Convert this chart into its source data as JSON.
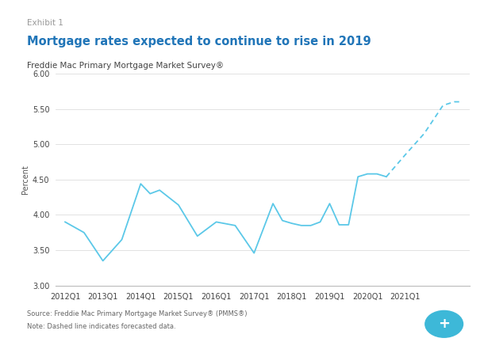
{
  "exhibit_label": "Exhibit 1",
  "title": "Mortgage rates expected to continue to rise in 2019",
  "subtitle": "Freddie Mac Primary Mortgage Market Survey®",
  "ylabel": "Percent",
  "source_text": "Source: Freddie Mac Primary Mortgage Market Survey® (PMMS®)",
  "note_text": "Note: Dashed line indicates forecasted data.",
  "line_color": "#5bc8e8",
  "background_color": "#ffffff",
  "ylim": [
    3.0,
    6.0
  ],
  "yticks": [
    3.0,
    3.5,
    4.0,
    4.5,
    5.0,
    5.5,
    6.0
  ],
  "title_color": "#2075b8",
  "exhibit_color": "#999999",
  "separator_color": "#a8c060",
  "solid_x": [
    0,
    0.5,
    1.0,
    1.5,
    2.0,
    2.25,
    2.5,
    3.0,
    3.5,
    4.0,
    4.5,
    5.0,
    5.5,
    5.75,
    6.0,
    6.25,
    6.5,
    6.75,
    7.0,
    7.25,
    7.5,
    7.75,
    8.0,
    8.25,
    8.5
  ],
  "solid_y": [
    3.9,
    3.75,
    3.35,
    3.65,
    4.44,
    4.3,
    4.35,
    4.14,
    3.7,
    3.9,
    3.85,
    3.46,
    4.16,
    3.92,
    3.88,
    3.85,
    3.85,
    3.9,
    4.16,
    3.86,
    3.86,
    4.54,
    4.58,
    4.58,
    4.54
  ],
  "dashed_x": [
    8.5,
    9.0,
    9.5,
    10.0,
    10.3,
    10.5
  ],
  "dashed_y": [
    4.54,
    4.85,
    5.15,
    5.55,
    5.6,
    5.6
  ],
  "xtick_positions": [
    0,
    1,
    2,
    3,
    4,
    5,
    6,
    7,
    8,
    9
  ],
  "xtick_labels": [
    "2012Q1",
    "2013Q1",
    "2014Q1",
    "2015Q1",
    "2016Q1",
    "2017Q1",
    "2018Q1",
    "2019Q1",
    "2020Q1",
    "2021Q1"
  ]
}
